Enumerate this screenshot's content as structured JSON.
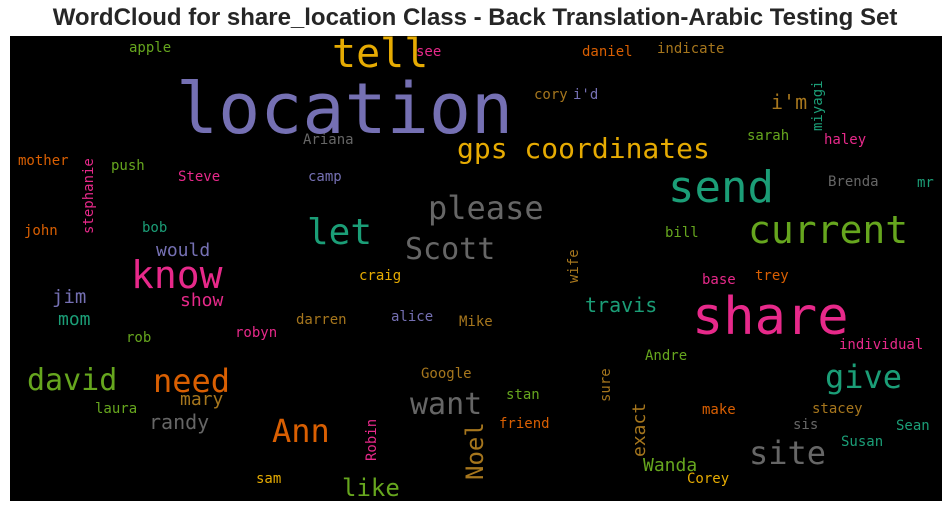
{
  "title": "WordCloud for share_location Class - Back Translation-Arabic Testing Set",
  "colors": {
    "purple": "#7570b3",
    "pink": "#e7298a",
    "teal": "#1b9e77",
    "orange": "#d95f02",
    "green": "#66a61e",
    "gold": "#e6ab02",
    "brown": "#a6761d",
    "gray": "#666666"
  },
  "words": {
    "location": "location",
    "tell": "tell",
    "share": "share",
    "send": "send",
    "current": "current",
    "know": "know",
    "gps": "gps coordinates",
    "please": "please",
    "let": "let",
    "scott": "Scott",
    "need": "need",
    "give": "give",
    "david": "david",
    "want": "want",
    "ann": "Ann",
    "site": "site",
    "noel": "Noel",
    "like": "like",
    "wanda": "Wanda",
    "im": "i'm",
    "apple": "apple",
    "see": "see",
    "daniel": "daniel",
    "indicate": "indicate",
    "cory": "cory",
    "id": "i'd",
    "miyagi": "miyagi",
    "sarah": "sarah",
    "haley": "haley",
    "ariana": "Ariana",
    "mother": "mother",
    "stephanie": "stephanie",
    "push": "push",
    "steve": "Steve",
    "camp": "camp",
    "brenda": "Brenda",
    "mr": "mr",
    "john": "john",
    "bob": "bob",
    "would": "would",
    "bill": "bill",
    "wife": "wife",
    "craig": "craig",
    "base": "base",
    "trey": "trey",
    "jim": "jim",
    "show": "show",
    "mom": "mom",
    "travis": "travis",
    "darren": "darren",
    "alice": "alice",
    "mike": "Mike",
    "rob": "rob",
    "robyn": "robyn",
    "andre": "Andre",
    "individual": "individual",
    "mary": "mary",
    "google": "Google",
    "sure": "sure",
    "laura": "laura",
    "randy": "randy",
    "stan": "stan",
    "friend": "friend",
    "exact": "exact",
    "make": "make",
    "stacey": "stacey",
    "sis": "sis",
    "sean": "Sean",
    "robin": "Robin",
    "susan": "Susan",
    "sam": "sam",
    "corey": "Corey"
  }
}
